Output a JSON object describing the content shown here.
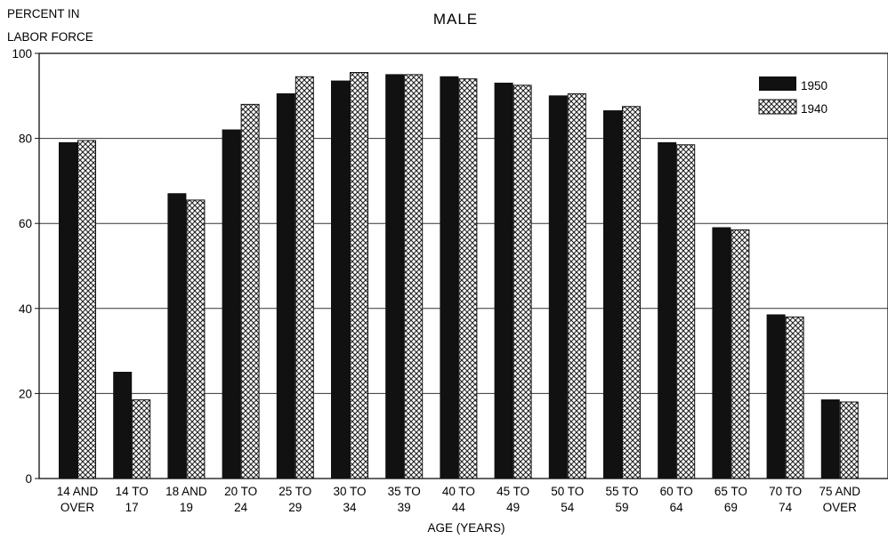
{
  "chart_data": {
    "type": "bar",
    "title": "MALE",
    "ylabel_lines": [
      "PERCENT IN",
      "LABOR FORCE"
    ],
    "xlabel": "AGE (YEARS)",
    "ylim": [
      0,
      100
    ],
    "yticks": [
      0,
      20,
      40,
      60,
      80,
      100
    ],
    "grid": true,
    "legend_position": "top-right",
    "categories": [
      [
        "14 AND",
        "OVER"
      ],
      [
        "14  TO",
        "17"
      ],
      [
        "18 AND",
        "19"
      ],
      [
        "20 TO",
        "24"
      ],
      [
        "25 TO",
        "29"
      ],
      [
        "30 TO",
        "34"
      ],
      [
        "35 TO",
        "39"
      ],
      [
        "40 TO",
        "44"
      ],
      [
        "45 TO",
        "49"
      ],
      [
        "50 TO",
        "54"
      ],
      [
        "55 TO",
        "59"
      ],
      [
        "60 TO",
        "64"
      ],
      [
        "65 TO",
        "69"
      ],
      [
        "70 TO",
        "74"
      ],
      [
        "75 AND",
        "OVER"
      ]
    ],
    "series": [
      {
        "name": "1950",
        "pattern": "solid",
        "color": "#111111",
        "values": [
          79,
          25,
          67,
          82,
          90.5,
          93.5,
          95,
          94.5,
          93,
          90,
          86.5,
          79,
          59,
          38.5,
          18.5
        ]
      },
      {
        "name": "1940",
        "pattern": "crosshatch",
        "color": "#111111",
        "values": [
          79.5,
          18.5,
          65.5,
          88,
          94.5,
          95.5,
          95,
          94,
          92.5,
          90.5,
          87.5,
          78.5,
          58.5,
          38,
          18
        ]
      }
    ]
  }
}
